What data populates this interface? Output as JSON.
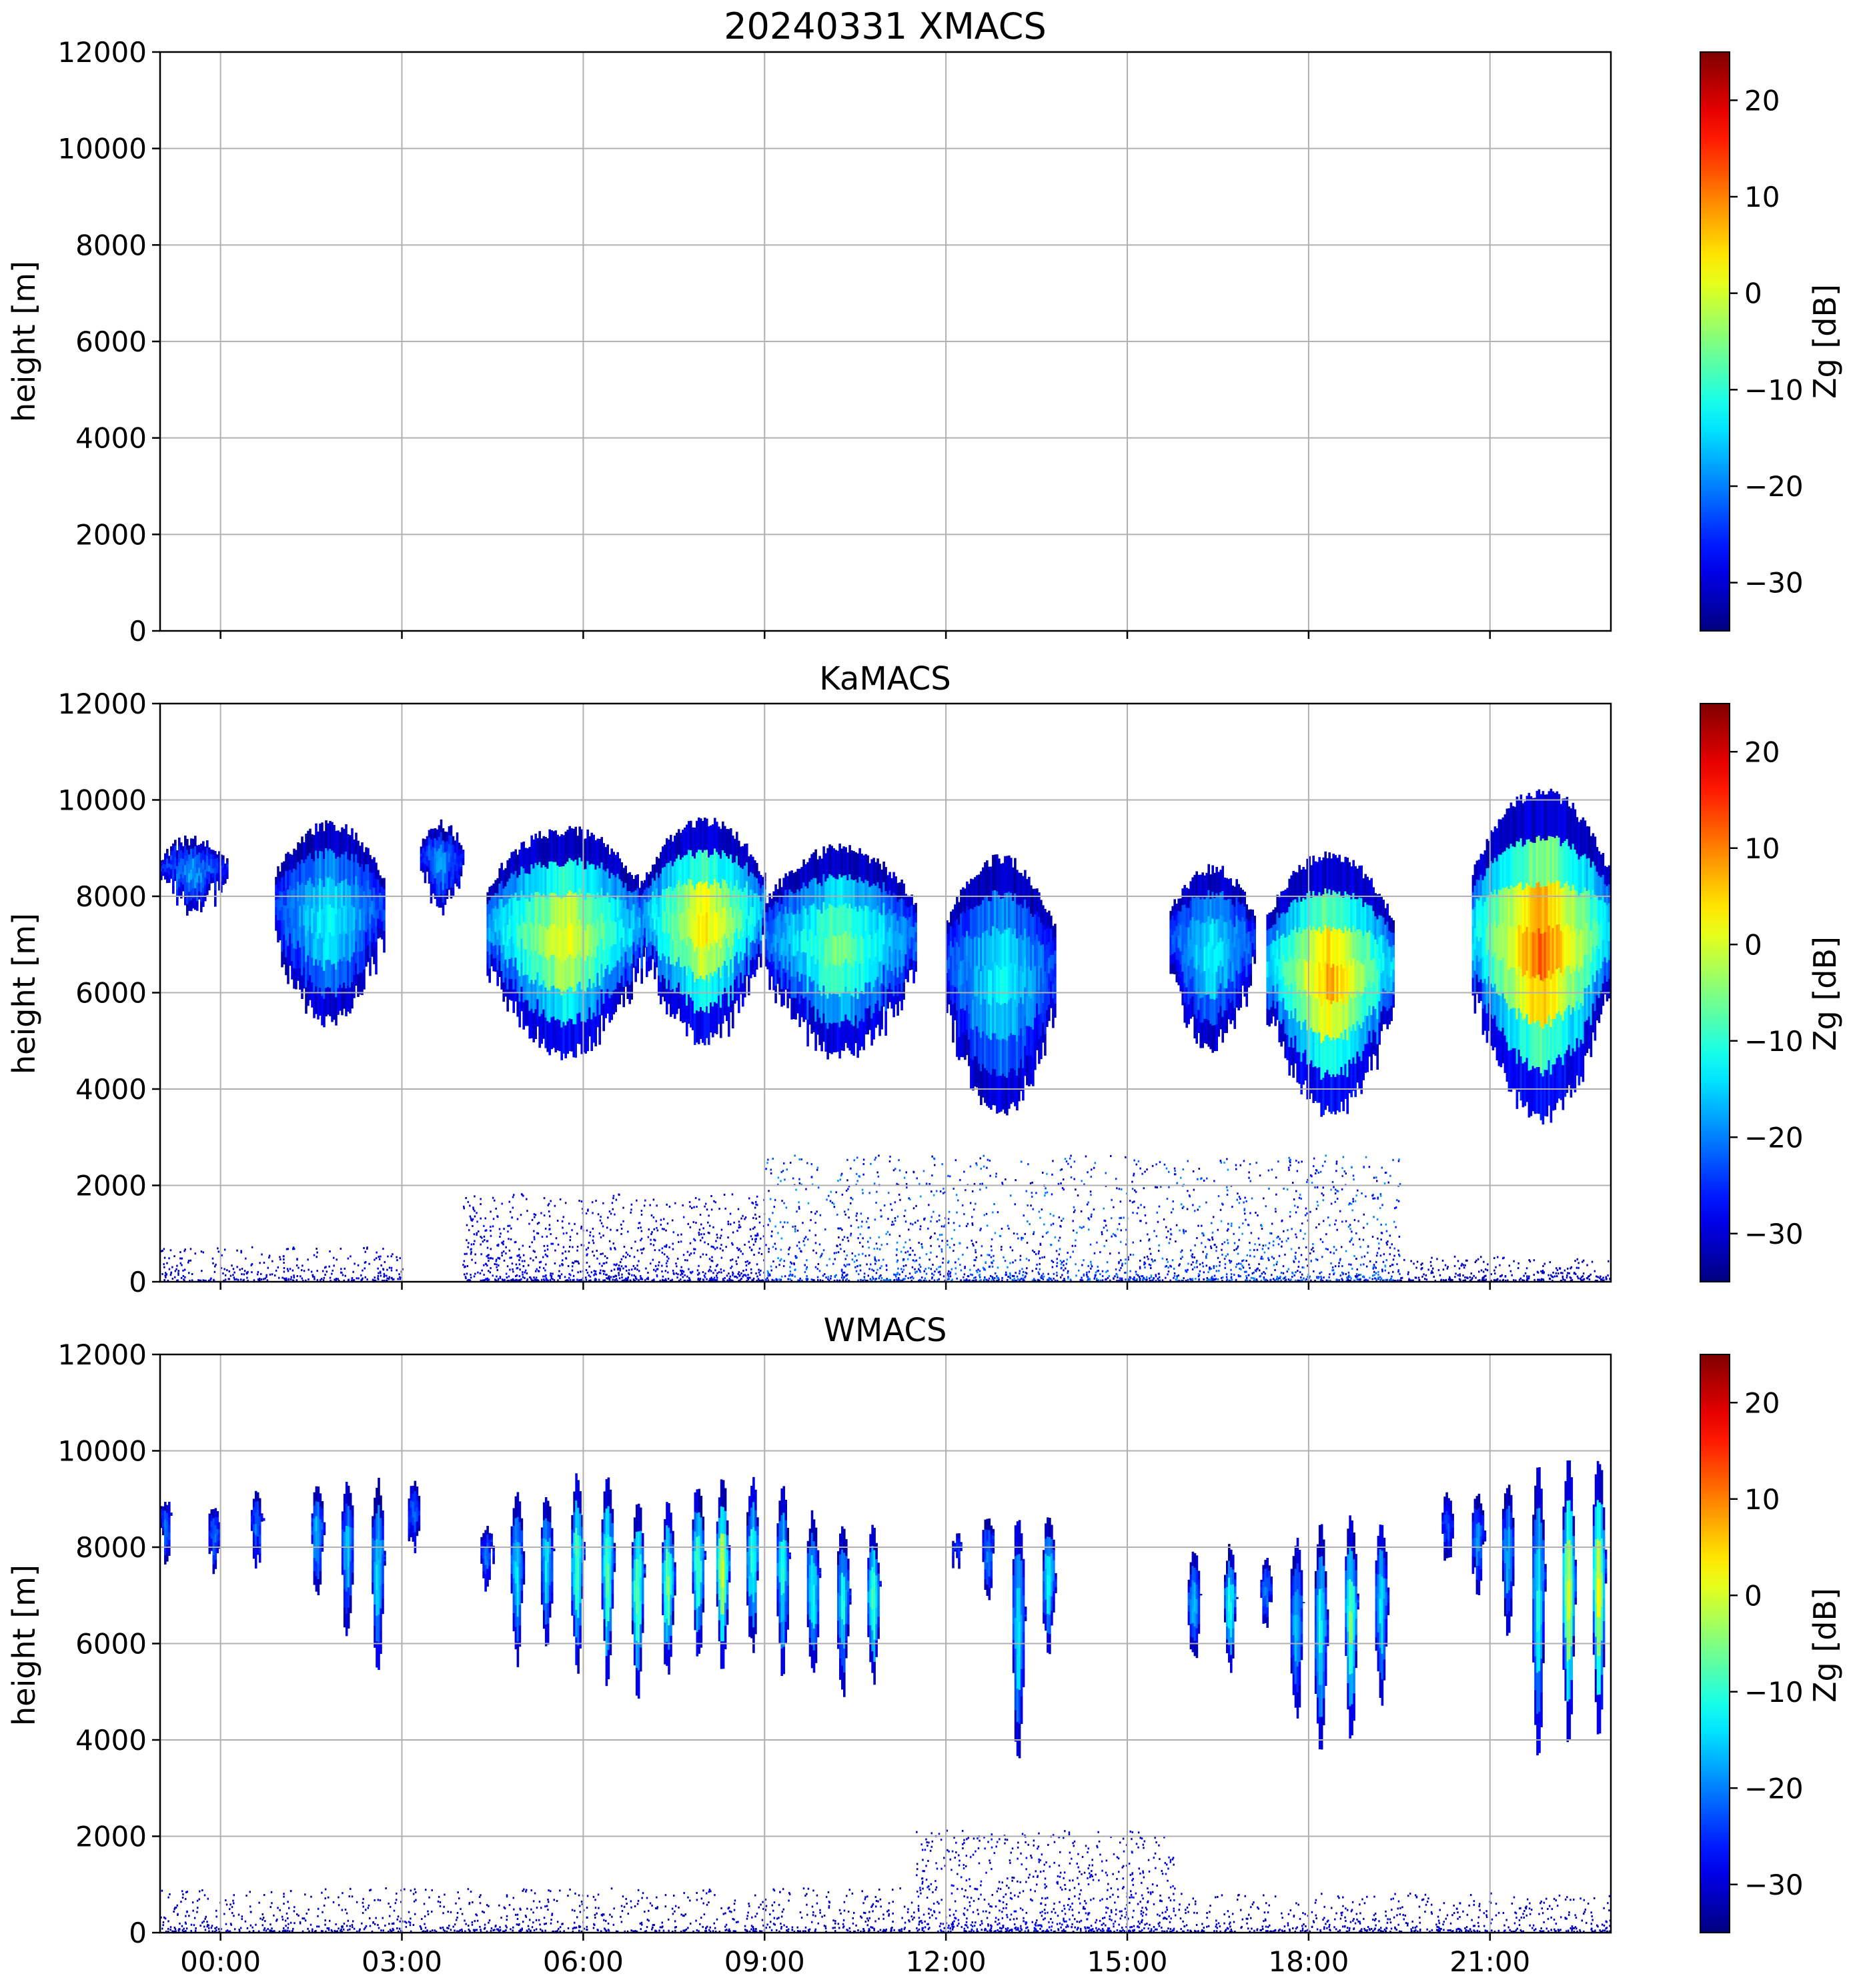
{
  "chart_data": [
    {
      "type": "heatmap",
      "title": "20240331 XMACS",
      "ylabel": "height [m]",
      "ylim": [
        0,
        12000
      ],
      "yticks": [
        "0",
        "2000",
        "4000",
        "6000",
        "8000",
        "10000",
        "12000"
      ],
      "xlim_hours": [
        -1,
        23
      ],
      "xticks": [],
      "grid": true,
      "colorbar": {
        "label": "Zg [dB]",
        "range": [
          -35,
          25
        ],
        "ticks": [
          "−30",
          "−20",
          "−10",
          "0",
          "10",
          "20"
        ],
        "tick_values": [
          -30,
          -20,
          -10,
          0,
          10,
          20
        ],
        "colormap": [
          "#00007f",
          "#0000ff",
          "#007fff",
          "#00ffff",
          "#7fff7f",
          "#ffff00",
          "#ff7f00",
          "#ff0000",
          "#7f0000"
        ]
      },
      "cloud_layers": [],
      "near_surface_clutter": []
    },
    {
      "type": "heatmap",
      "title": "KaMACS",
      "ylabel": "height [m]",
      "ylim": [
        0,
        12000
      ],
      "yticks": [
        "0",
        "2000",
        "4000",
        "6000",
        "8000",
        "10000",
        "12000"
      ],
      "xlim_hours": [
        -1,
        23
      ],
      "xticks": [],
      "grid": true,
      "colorbar": {
        "label": "Zg [dB]",
        "range": [
          -35,
          25
        ],
        "ticks": [
          "−30",
          "−20",
          "−10",
          "0",
          "10",
          "20"
        ],
        "tick_values": [
          -30,
          -20,
          -10,
          0,
          10,
          20
        ],
        "colormap": [
          "#00007f",
          "#0000ff",
          "#007fff",
          "#00ffff",
          "#7fff7f",
          "#ffff00",
          "#ff7f00",
          "#ff0000",
          "#7f0000"
        ]
      },
      "cloud_layers": [
        {
          "t0": -1.0,
          "t1": 0.1,
          "base": 7600,
          "top": 9300,
          "peak_dbz": -18
        },
        {
          "t0": 0.9,
          "t1": 2.7,
          "base": 5300,
          "top": 9600,
          "peak_dbz": -12
        },
        {
          "t0": 3.3,
          "t1": 4.0,
          "base": 7700,
          "top": 9600,
          "peak_dbz": -18
        },
        {
          "t0": 4.4,
          "t1": 7.0,
          "base": 4600,
          "top": 9500,
          "peak_dbz": 2
        },
        {
          "t0": 7.0,
          "t1": 9.0,
          "base": 4900,
          "top": 9700,
          "peak_dbz": 5
        },
        {
          "t0": 9.0,
          "t1": 11.5,
          "base": 4600,
          "top": 9100,
          "peak_dbz": -5
        },
        {
          "t0": 12.0,
          "t1": 13.8,
          "base": 3400,
          "top": 8900,
          "peak_dbz": -12
        },
        {
          "t0": 15.7,
          "t1": 17.1,
          "base": 4800,
          "top": 8700,
          "peak_dbz": -12
        },
        {
          "t0": 17.3,
          "t1": 19.4,
          "base": 3400,
          "top": 9000,
          "peak_dbz": 8
        },
        {
          "t0": 20.7,
          "t1": 23.0,
          "base": 3300,
          "top": 10300,
          "peak_dbz": 12
        }
      ],
      "near_surface_clutter": [
        {
          "t0": -1.0,
          "t1": 3.0,
          "top": 700,
          "peak_dbz": -28
        },
        {
          "t0": 4.0,
          "t1": 9.0,
          "top": 1800,
          "peak_dbz": -26
        },
        {
          "t0": 9.0,
          "t1": 19.5,
          "top": 2600,
          "peak_dbz": -18
        },
        {
          "t0": 19.5,
          "t1": 23.0,
          "top": 500,
          "peak_dbz": -30
        }
      ]
    },
    {
      "type": "heatmap",
      "title": "WMACS",
      "ylabel": "height [m]",
      "ylim": [
        0,
        12000
      ],
      "yticks": [
        "0",
        "2000",
        "4000",
        "6000",
        "8000",
        "10000",
        "12000"
      ],
      "xlim_hours": [
        -1,
        23
      ],
      "xticks": [
        "00:00",
        "03:00",
        "06:00",
        "09:00",
        "12:00",
        "15:00",
        "18:00",
        "21:00"
      ],
      "xtick_hours": [
        0,
        3,
        6,
        9,
        12,
        15,
        18,
        21
      ],
      "grid": true,
      "colorbar": {
        "label": "Zg [dB]",
        "range": [
          -35,
          25
        ],
        "ticks": [
          "−30",
          "−20",
          "−10",
          "0",
          "10",
          "20"
        ],
        "tick_values": [
          -30,
          -20,
          -10,
          0,
          10,
          20
        ],
        "colormap": [
          "#00007f",
          "#0000ff",
          "#007fff",
          "#00ffff",
          "#7fff7f",
          "#ffff00",
          "#ff7f00",
          "#ff0000",
          "#7f0000"
        ]
      },
      "cloud_layers": [
        {
          "t0": -1.0,
          "t1": -0.8,
          "base": 7700,
          "top": 9100,
          "peak_dbz": -20
        },
        {
          "t0": -0.2,
          "t1": 0.0,
          "base": 7400,
          "top": 9000,
          "peak_dbz": -20
        },
        {
          "t0": 0.5,
          "t1": 0.7,
          "base": 7500,
          "top": 9200,
          "peak_dbz": -20
        },
        {
          "t0": 1.5,
          "t1": 1.7,
          "base": 6800,
          "top": 9400,
          "peak_dbz": -15
        },
        {
          "t0": 2.0,
          "t1": 2.2,
          "base": 6000,
          "top": 9500,
          "peak_dbz": -15
        },
        {
          "t0": 2.5,
          "t1": 2.7,
          "base": 5300,
          "top": 9500,
          "peak_dbz": -12
        },
        {
          "t0": 3.1,
          "t1": 3.3,
          "base": 7800,
          "top": 9500,
          "peak_dbz": -20
        },
        {
          "t0": 4.3,
          "t1": 4.5,
          "base": 6900,
          "top": 8600,
          "peak_dbz": -20
        },
        {
          "t0": 4.8,
          "t1": 5.0,
          "base": 5500,
          "top": 9300,
          "peak_dbz": -12
        },
        {
          "t0": 5.3,
          "t1": 5.5,
          "base": 5700,
          "top": 9200,
          "peak_dbz": -12
        },
        {
          "t0": 5.8,
          "t1": 6.0,
          "base": 5300,
          "top": 9600,
          "peak_dbz": -5
        },
        {
          "t0": 6.3,
          "t1": 6.5,
          "base": 5100,
          "top": 9600,
          "peak_dbz": -5
        },
        {
          "t0": 6.8,
          "t1": 7.0,
          "base": 4800,
          "top": 9100,
          "peak_dbz": -3
        },
        {
          "t0": 7.3,
          "t1": 7.5,
          "base": 5100,
          "top": 9000,
          "peak_dbz": -3
        },
        {
          "t0": 7.8,
          "t1": 8.0,
          "base": 5500,
          "top": 9400,
          "peak_dbz": -5
        },
        {
          "t0": 8.2,
          "t1": 8.4,
          "base": 5300,
          "top": 9500,
          "peak_dbz": 2
        },
        {
          "t0": 8.7,
          "t1": 8.9,
          "base": 5700,
          "top": 9500,
          "peak_dbz": -8
        },
        {
          "t0": 9.2,
          "t1": 9.4,
          "base": 5200,
          "top": 9300,
          "peak_dbz": -10
        },
        {
          "t0": 9.7,
          "t1": 9.9,
          "base": 5100,
          "top": 8800,
          "peak_dbz": -10
        },
        {
          "t0": 10.2,
          "t1": 10.4,
          "base": 4900,
          "top": 8600,
          "peak_dbz": -10
        },
        {
          "t0": 10.7,
          "t1": 10.9,
          "base": 5000,
          "top": 8500,
          "peak_dbz": -5
        },
        {
          "t0": 12.1,
          "t1": 12.3,
          "base": 7400,
          "top": 8300,
          "peak_dbz": -22
        },
        {
          "t0": 12.6,
          "t1": 12.8,
          "base": 6900,
          "top": 8700,
          "peak_dbz": -18
        },
        {
          "t0": 13.1,
          "t1": 13.3,
          "base": 3400,
          "top": 8800,
          "peak_dbz": -12
        },
        {
          "t0": 13.6,
          "t1": 13.8,
          "base": 5600,
          "top": 8700,
          "peak_dbz": -10
        },
        {
          "t0": 16.0,
          "t1": 16.2,
          "base": 5500,
          "top": 8000,
          "peak_dbz": -15
        },
        {
          "t0": 16.6,
          "t1": 16.8,
          "base": 5200,
          "top": 8100,
          "peak_dbz": -8
        },
        {
          "t0": 17.2,
          "t1": 17.4,
          "base": 6200,
          "top": 7800,
          "peak_dbz": -18
        },
        {
          "t0": 17.7,
          "t1": 17.9,
          "base": 4400,
          "top": 8300,
          "peak_dbz": -15
        },
        {
          "t0": 18.1,
          "t1": 18.3,
          "base": 3500,
          "top": 8600,
          "peak_dbz": -10
        },
        {
          "t0": 18.6,
          "t1": 18.8,
          "base": 3900,
          "top": 8700,
          "peak_dbz": -3
        },
        {
          "t0": 19.1,
          "t1": 19.3,
          "base": 4600,
          "top": 8600,
          "peak_dbz": -12
        },
        {
          "t0": 20.2,
          "t1": 20.4,
          "base": 7600,
          "top": 9200,
          "peak_dbz": -22
        },
        {
          "t0": 20.7,
          "t1": 20.9,
          "base": 6900,
          "top": 9300,
          "peak_dbz": -18
        },
        {
          "t0": 21.2,
          "t1": 21.4,
          "base": 6100,
          "top": 9400,
          "peak_dbz": -15
        },
        {
          "t0": 21.7,
          "t1": 21.9,
          "base": 3600,
          "top": 9800,
          "peak_dbz": -10
        },
        {
          "t0": 22.2,
          "t1": 22.4,
          "base": 3900,
          "top": 9900,
          "peak_dbz": 3
        },
        {
          "t0": 22.7,
          "t1": 22.9,
          "base": 4000,
          "top": 10000,
          "peak_dbz": 5
        }
      ],
      "near_surface_clutter": [
        {
          "t0": -1.0,
          "t1": 11.5,
          "top": 900,
          "peak_dbz": -30
        },
        {
          "t0": 11.5,
          "t1": 15.8,
          "top": 2100,
          "peak_dbz": -26
        },
        {
          "t0": 15.8,
          "t1": 23.0,
          "top": 800,
          "peak_dbz": -30
        }
      ]
    }
  ]
}
